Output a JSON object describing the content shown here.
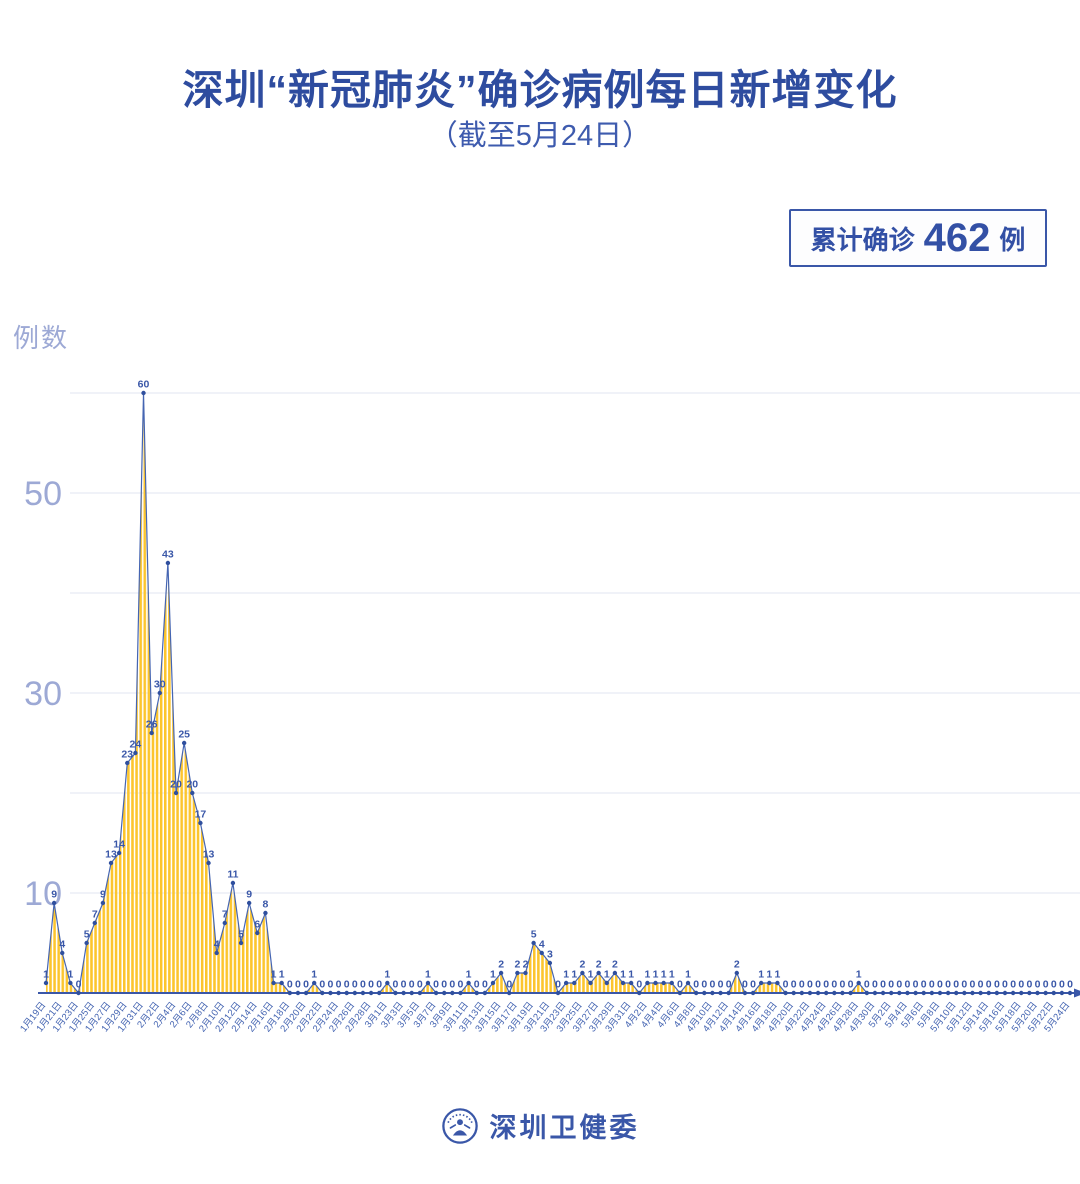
{
  "title": "深圳“新冠肺炎”确诊病例每日新增变化",
  "subtitle": "（截至5月24日）",
  "badge": {
    "prefix": "累计确诊",
    "value": "462",
    "suffix": "例"
  },
  "footer": {
    "org": "深圳卫健委"
  },
  "colors": {
    "title_blue": "#2e4c9f",
    "primary_blue": "#3a57a8",
    "line_blue": "#4565b2",
    "dot_blue": "#2f4f9e",
    "value_label_blue": "#3a57a8",
    "x_label_blue": "#4565b2",
    "tick_periwinkle": "#9da9d5",
    "gridline": "#e8ebf4",
    "area_yellow": "#fcc52d",
    "background": "#ffffff"
  },
  "chart_data": {
    "type": "area",
    "title": "深圳“新冠肺炎”确诊病例每日新增变化",
    "subtitle": "（截至5月24日）",
    "ylabel": "例数",
    "y_ticks_labeled": [
      10,
      30,
      50
    ],
    "y_gridlines": [
      10,
      20,
      30,
      40,
      50,
      60
    ],
    "ylim": [
      0,
      60
    ],
    "grid": true,
    "legend_position": "none",
    "cumulative_total": 462,
    "x_label_every_n_points": 2,
    "x_axis_labels": [
      "1月19日",
      "1月21日",
      "1月23日",
      "1月25日",
      "1月27日",
      "1月29日",
      "1月31日",
      "2月2日",
      "2月4日",
      "2月6日",
      "2月8日",
      "2月10日",
      "2月12日",
      "2月14日",
      "2月16日",
      "2月18日",
      "2月20日",
      "2月22日",
      "2月24日",
      "2月26日",
      "2月28日",
      "3月1日",
      "3月3日",
      "3月5日",
      "3月7日",
      "3月9日",
      "3月11日",
      "3月13日",
      "3月15日",
      "3月17日",
      "3月19日",
      "3月21日",
      "3月23日",
      "3月25日",
      "3月27日",
      "3月29日",
      "3月31日",
      "4月2日",
      "4月4日",
      "4月6日",
      "4月8日",
      "4月10日",
      "4月12日",
      "4月14日",
      "4月16日",
      "4月18日",
      "4月20日",
      "4月22日",
      "4月24日",
      "4月26日",
      "4月28日",
      "4月30日",
      "5月2日",
      "5月4日",
      "5月6日",
      "5月8日",
      "5月10日",
      "5月12日",
      "5月14日",
      "5月16日",
      "5月18日",
      "5月20日",
      "5月22日",
      "5月24日"
    ],
    "values": [
      1,
      9,
      4,
      1,
      0,
      5,
      7,
      9,
      13,
      14,
      23,
      24,
      60,
      26,
      30,
      43,
      20,
      25,
      20,
      17,
      13,
      4,
      7,
      11,
      5,
      9,
      6,
      8,
      1,
      1,
      0,
      0,
      0,
      1,
      0,
      0,
      0,
      0,
      0,
      0,
      0,
      0,
      1,
      0,
      0,
      0,
      0,
      1,
      0,
      0,
      0,
      0,
      1,
      0,
      0,
      1,
      2,
      0,
      2,
      2,
      5,
      4,
      3,
      0,
      1,
      1,
      2,
      1,
      2,
      1,
      2,
      1,
      1,
      0,
      1,
      1,
      1,
      1,
      0,
      1,
      0,
      0,
      0,
      0,
      0,
      2,
      0,
      0,
      1,
      1,
      1,
      0,
      0,
      0,
      0,
      0,
      0,
      0,
      0,
      0,
      1,
      0,
      0,
      0,
      0,
      0,
      0,
      0,
      0,
      0,
      0,
      0,
      0,
      0,
      0,
      0,
      0,
      0,
      0,
      0,
      0,
      0,
      0,
      0,
      0,
      0,
      0
    ]
  }
}
